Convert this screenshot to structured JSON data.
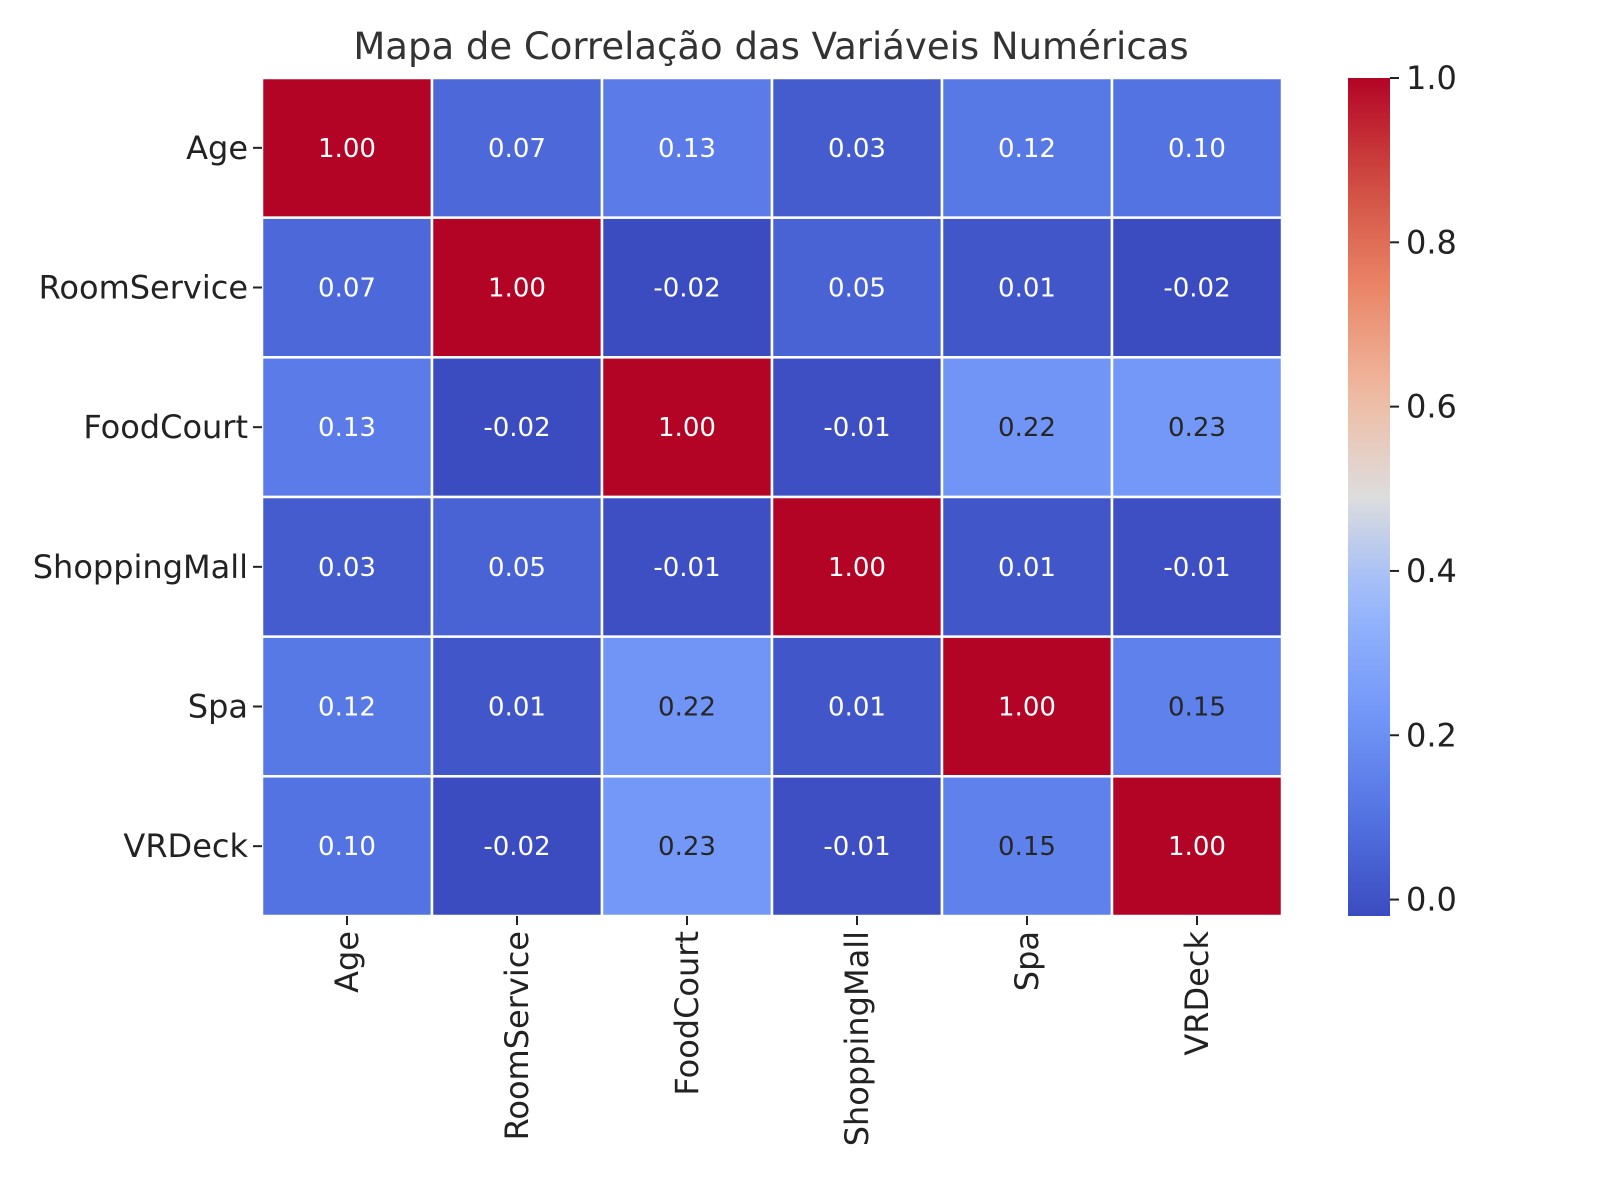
{
  "chart_data": {
    "type": "heatmap",
    "title": "Mapa de Correlação das Variáveis Numéricas",
    "xlabel": "",
    "ylabel": "",
    "x_categories": [
      "Age",
      "RoomService",
      "FoodCourt",
      "ShoppingMall",
      "Spa",
      "VRDeck"
    ],
    "y_categories": [
      "Age",
      "RoomService",
      "FoodCourt",
      "ShoppingMall",
      "Spa",
      "VRDeck"
    ],
    "values": [
      [
        1.0,
        0.07,
        0.13,
        0.03,
        0.12,
        0.1
      ],
      [
        0.07,
        1.0,
        -0.02,
        0.05,
        0.01,
        -0.02
      ],
      [
        0.13,
        -0.02,
        1.0,
        -0.01,
        0.22,
        0.23
      ],
      [
        0.03,
        0.05,
        -0.01,
        1.0,
        0.01,
        -0.01
      ],
      [
        0.12,
        0.01,
        0.22,
        0.01,
        1.0,
        0.15
      ],
      [
        0.1,
        -0.02,
        0.23,
        -0.01,
        0.15,
        1.0
      ]
    ],
    "value_format": "0.00",
    "colormap": "coolwarm",
    "color_range": [
      -0.02,
      1.0
    ],
    "colorbar_ticks": [
      "0.0",
      "0.2",
      "0.4",
      "0.6",
      "0.8",
      "1.0"
    ],
    "colorbar_tick_values": [
      0.0,
      0.2,
      0.4,
      0.6,
      0.8,
      1.0
    ],
    "grid_lines_color": "#ffffff",
    "legend": "colorbar-right"
  }
}
